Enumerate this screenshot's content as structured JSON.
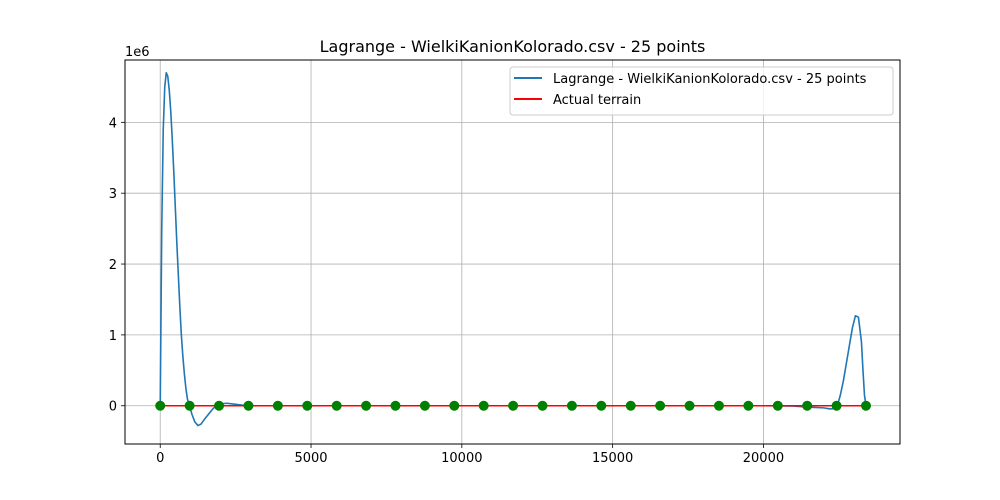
{
  "chart_data": {
    "type": "line",
    "title": "Lagrange - WielkiKanionKolorado.csv - 25 points",
    "xlabel": "",
    "ylabel": "",
    "y_scale_label": "1e6",
    "xlim": [
      -1168,
      24528
    ],
    "ylim": [
      -540000,
      4880000
    ],
    "x_ticks": [
      0,
      5000,
      10000,
      15000,
      20000
    ],
    "x_tick_labels": [
      "0",
      "5000",
      "10000",
      "15000",
      "20000"
    ],
    "y_ticks": [
      0,
      1000000,
      2000000,
      3000000,
      4000000
    ],
    "y_tick_labels": [
      "0",
      "1",
      "2",
      "3",
      "4"
    ],
    "grid": true,
    "legend_position": "upper right",
    "series": [
      {
        "name": "Lagrange - WielkiKanionKolorado.csv - 25 points",
        "color": "#1f77b4",
        "x": [
          0,
          20,
          50,
          100,
          150,
          200,
          250,
          300,
          350,
          400,
          450,
          500,
          550,
          600,
          650,
          700,
          750,
          800,
          850,
          900,
          950,
          975,
          1050,
          1150,
          1250,
          1350,
          1450,
          1600,
          1750,
          1900,
          2000,
          2200,
          2400,
          2600,
          2800,
          2925,
          3500,
          4000,
          4500,
          5000,
          6000,
          7000,
          8000,
          9000,
          10000,
          11000,
          12000,
          13000,
          14000,
          15000,
          16000,
          17000,
          18000,
          19000,
          20000,
          21000,
          21500,
          22000,
          22200,
          22350,
          22450,
          22550,
          22650,
          22750,
          22850,
          22950,
          23050,
          23150,
          23250,
          23300,
          23350,
          23400
        ],
        "y": [
          0,
          1000000,
          2500000,
          3900000,
          4500000,
          4700000,
          4650000,
          4450000,
          4150000,
          3750000,
          3300000,
          2800000,
          2300000,
          1850000,
          1400000,
          1000000,
          700000,
          450000,
          250000,
          100000,
          20000,
          0,
          -120000,
          -230000,
          -280000,
          -260000,
          -200000,
          -120000,
          -40000,
          10000,
          25000,
          35000,
          25000,
          15000,
          5000,
          0,
          0,
          0,
          0,
          0,
          0,
          0,
          0,
          0,
          0,
          0,
          0,
          0,
          0,
          0,
          0,
          0,
          0,
          0,
          0,
          -5000,
          -20000,
          -30000,
          -45000,
          -40000,
          0,
          150000,
          350000,
          600000,
          850000,
          1100000,
          1270000,
          1250000,
          900000,
          500000,
          150000,
          0
        ]
      },
      {
        "name": "Actual terrain",
        "color": "#ff0000",
        "x": [
          0,
          23400
        ],
        "y": [
          0,
          0
        ]
      }
    ],
    "nodes": {
      "color": "#008000",
      "x": [
        0,
        975,
        1950,
        2925,
        3900,
        4875,
        5850,
        6825,
        7800,
        8775,
        9750,
        10725,
        11700,
        12675,
        13650,
        14625,
        15600,
        16575,
        17550,
        18525,
        19500,
        20475,
        21450,
        22425,
        23400
      ],
      "y": [
        0,
        0,
        0,
        0,
        0,
        0,
        0,
        0,
        0,
        0,
        0,
        0,
        0,
        0,
        0,
        0,
        0,
        0,
        0,
        0,
        0,
        0,
        0,
        0,
        0
      ]
    }
  }
}
